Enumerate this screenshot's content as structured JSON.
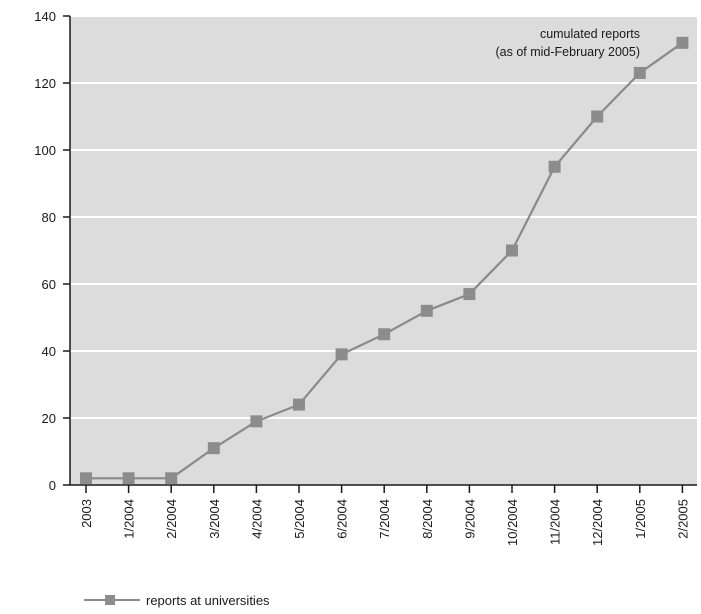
{
  "chart_data": {
    "type": "line",
    "title": "",
    "xlabel": "",
    "ylabel": "",
    "categories": [
      "2003",
      "1/2004",
      "2/2004",
      "3/2004",
      "4/2004",
      "5/2004",
      "6/2004",
      "7/2004",
      "8/2004",
      "9/2004",
      "10/2004",
      "11/2004",
      "12/2004",
      "1/2005",
      "2/2005"
    ],
    "series": [
      {
        "name": "reports at universities",
        "values": [
          2,
          2,
          2,
          11,
          19,
          24,
          39,
          45,
          52,
          57,
          70,
          95,
          110,
          123,
          132
        ]
      }
    ],
    "ylim": [
      0,
      140
    ],
    "yticks": [
      0,
      20,
      40,
      60,
      80,
      100,
      120,
      140
    ],
    "annotation": [
      "cumulated reports",
      "(as of mid-February 2005)"
    ],
    "grid": "horizontal",
    "legend_position": "bottom-left",
    "colors": {
      "plot_background": "#dcdcdc",
      "gridline": "#ffffff",
      "series_line": "#8a8a8a",
      "marker": "#8c8c8c",
      "axis": "#1a1a1a"
    }
  }
}
